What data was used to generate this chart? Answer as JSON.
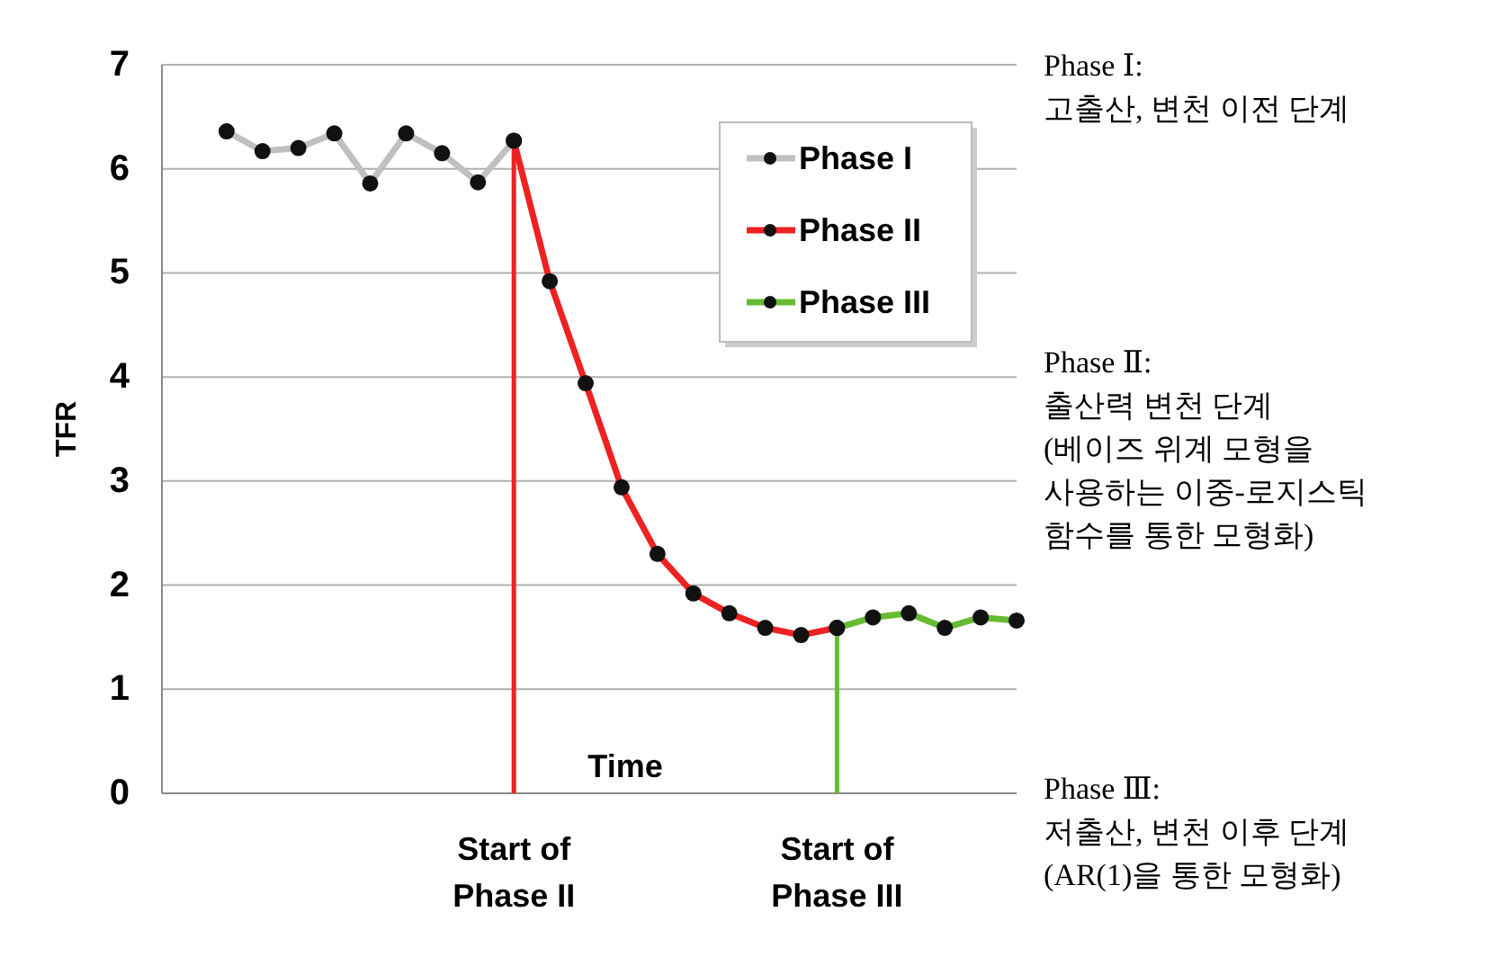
{
  "chart_data": {
    "type": "line",
    "ylabel": "TFR",
    "xlabel": "Time",
    "categories": [
      null,
      null,
      null,
      null,
      null,
      null,
      null,
      null,
      "Start of\nPhase II",
      null,
      null,
      null,
      null,
      null,
      null,
      null,
      null,
      "Start of\nPhase III",
      null,
      null,
      null,
      null,
      null
    ],
    "ylim": [
      0,
      7
    ],
    "yticks": [
      0,
      1,
      2,
      3,
      4,
      5,
      6,
      7
    ],
    "grid": "y",
    "legend": "top right",
    "marker": "circle",
    "line_style": "solid",
    "series": [
      {
        "name": "Phase I",
        "color": "#c0c0c0",
        "values": [
          6.36,
          6.17,
          6.2,
          6.34,
          5.86,
          6.34,
          6.15,
          5.87,
          6.27,
          null,
          null,
          null,
          null,
          null,
          null,
          null,
          null,
          null,
          null,
          null,
          null,
          null,
          null
        ]
      },
      {
        "name": "Phase II",
        "color": "#ee2222",
        "values": [
          null,
          null,
          null,
          null,
          null,
          null,
          null,
          null,
          6.27,
          4.92,
          3.94,
          2.94,
          2.3,
          1.92,
          1.73,
          1.59,
          1.52,
          1.59,
          null,
          null,
          null,
          null,
          null
        ]
      },
      {
        "name": "Phase III",
        "color": "#66bb33",
        "values": [
          null,
          null,
          null,
          null,
          null,
          null,
          null,
          null,
          null,
          null,
          null,
          null,
          null,
          null,
          null,
          null,
          null,
          1.59,
          1.69,
          1.73,
          1.59,
          1.69,
          1.66
        ]
      }
    ],
    "ref_lines": [
      {
        "axis": "x",
        "value": "Start of\nPhase II",
        "color": "#ee2222"
      },
      {
        "axis": "x",
        "value": "Start of\nPhase III",
        "color": "#66bb33"
      }
    ],
    "annotations": [
      "Phase Ⅰ:\n고출산, 변천 이전 단계",
      "Phase Ⅱ:\n출산력 변천 단계\n(베이즈 위계 모형을\n사용하는 이중-로지스틱\n함수를 통한 모형화)",
      "Phase Ⅲ:\n저출산, 변천 이후 단계\n(AR(1)을 통한 모형화)"
    ]
  }
}
